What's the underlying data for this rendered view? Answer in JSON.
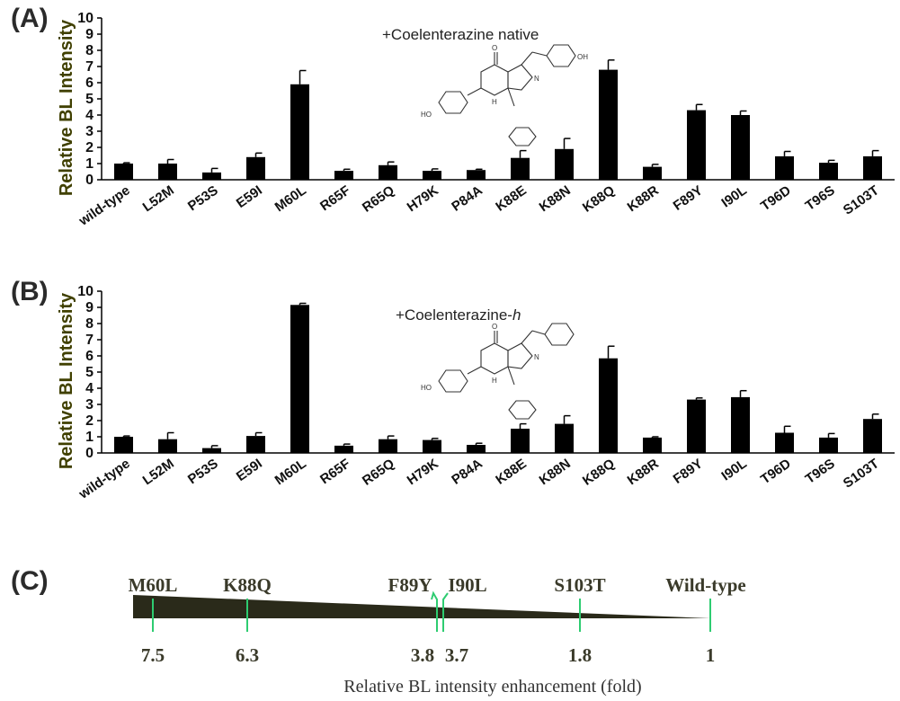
{
  "chart_data": [
    {
      "type": "bar",
      "panel": "(A)",
      "annotation": "+Coelenterazine native",
      "annotation_italic": "",
      "ylabel": "Relative BL Intensity",
      "ylim": [
        0,
        10
      ],
      "yticks": [
        0,
        1,
        2,
        3,
        4,
        5,
        6,
        7,
        8,
        9,
        10
      ],
      "categories": [
        "wild-type",
        "L52M",
        "P53S",
        "E59I",
        "M60L",
        "R65F",
        "R65Q",
        "H79K",
        "P84A",
        "K88E",
        "K88N",
        "K88Q",
        "K88R",
        "F89Y",
        "I90L",
        "T96D",
        "T96S",
        "S103T"
      ],
      "values": [
        1.0,
        1.0,
        0.45,
        1.4,
        5.9,
        0.55,
        0.9,
        0.55,
        0.6,
        1.35,
        1.9,
        6.8,
        0.8,
        4.3,
        4.0,
        1.45,
        1.05,
        1.45
      ],
      "errors": [
        0.05,
        0.25,
        0.25,
        0.25,
        0.85,
        0.1,
        0.2,
        0.12,
        0.05,
        0.45,
        0.65,
        0.6,
        0.15,
        0.35,
        0.25,
        0.3,
        0.15,
        0.35
      ]
    },
    {
      "type": "bar",
      "panel": "(B)",
      "annotation": "+Coelenterazine-",
      "annotation_italic": "h",
      "ylabel": "Relative BL Intensity",
      "ylim": [
        0,
        10
      ],
      "yticks": [
        0,
        1,
        2,
        3,
        4,
        5,
        6,
        7,
        8,
        9,
        10
      ],
      "categories": [
        "wild-type",
        "L52M",
        "P53S",
        "E59I",
        "M60L",
        "R65F",
        "R65Q",
        "H79K",
        "P84A",
        "K88E",
        "K88N",
        "K88Q",
        "K88R",
        "F89Y",
        "I90L",
        "T96D",
        "T96S",
        "S103T"
      ],
      "values": [
        1.0,
        0.85,
        0.3,
        1.05,
        9.15,
        0.45,
        0.85,
        0.8,
        0.5,
        1.5,
        1.8,
        5.85,
        0.95,
        3.3,
        3.45,
        1.25,
        0.95,
        2.1
      ],
      "errors": [
        0.05,
        0.4,
        0.15,
        0.2,
        0.1,
        0.1,
        0.2,
        0.1,
        0.1,
        0.3,
        0.5,
        0.75,
        0.05,
        0.1,
        0.4,
        0.4,
        0.25,
        0.3
      ]
    }
  ],
  "panel_c": {
    "panel": "(C)",
    "xlabel": "Relative BL intensity enhancement (fold)",
    "markers": [
      {
        "label": "M60L",
        "value": "7.5"
      },
      {
        "label": "K88Q",
        "value": "6.3"
      },
      {
        "label": "F89Y",
        "value": "3.8"
      },
      {
        "label": "I90L",
        "value": "3.7"
      },
      {
        "label": "S103T",
        "value": "1.8"
      },
      {
        "label": "Wild-type",
        "value": "1"
      }
    ],
    "colors": {
      "marker": "#2ecc71",
      "wedge": "#2a2a1a"
    }
  },
  "molecule_atoms": {
    "oxygen": "O",
    "nitrogen": "N",
    "hydrogen": "H",
    "hydroxyl": "HO",
    "oh": "OH"
  }
}
